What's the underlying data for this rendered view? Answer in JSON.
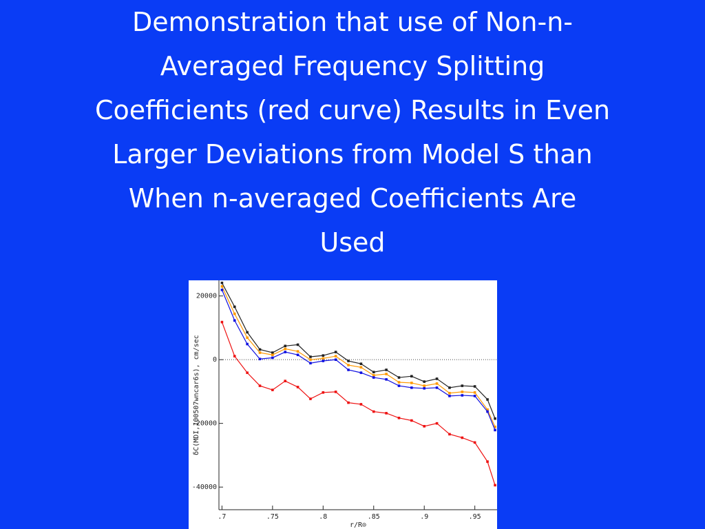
{
  "chart_data": {
    "type": "line",
    "title": [
      "Demonstration that use of Non-n-",
      "Averaged Frequency Splitting",
      "Coefficients (red curve) Results in Even",
      "Larger Deviations from Model S than",
      "When n-averaged Coefficients Are",
      "Used"
    ],
    "x_label": "r/R⊙",
    "y_label": "δC(MDI,100507wncar6s), cm/sec",
    "x": [
      0.7,
      0.7125,
      0.725,
      0.7375,
      0.75,
      0.7625,
      0.775,
      0.7875,
      0.8,
      0.8125,
      0.825,
      0.8375,
      0.85,
      0.8625,
      0.875,
      0.8875,
      0.9,
      0.9125,
      0.925,
      0.9375,
      0.95,
      0.9625,
      0.97
    ],
    "series": [
      {
        "color": "#222222",
        "values": [
          24100,
          16600,
          8600,
          3200,
          2200,
          4300,
          4700,
          900,
          1300,
          2400,
          -400,
          -1300,
          -3900,
          -3200,
          -5600,
          -5200,
          -6900,
          -6000,
          -8800,
          -8200,
          -8400,
          -12500,
          -18500
        ]
      },
      {
        "color": "#ff9900",
        "values": [
          23000,
          14400,
          6900,
          2200,
          1500,
          3400,
          2600,
          0,
          400,
          1100,
          -1700,
          -2400,
          -4900,
          -4500,
          -7100,
          -7300,
          -8200,
          -7500,
          -10500,
          -10100,
          -10300,
          -15700,
          -21100
        ]
      },
      {
        "color": "#1010e0",
        "values": [
          21900,
          12300,
          4900,
          200,
          600,
          2400,
          1500,
          -1100,
          -400,
          0,
          -3200,
          -4100,
          -5600,
          -6200,
          -8200,
          -8800,
          -9000,
          -8800,
          -11400,
          -11200,
          -11400,
          -16300,
          -22100
        ]
      },
      {
        "color": "#ee1111",
        "values": [
          11800,
          1100,
          -4100,
          -8200,
          -9500,
          -6700,
          -8600,
          -12300,
          -10300,
          -10100,
          -13500,
          -14000,
          -16300,
          -16800,
          -18300,
          -19100,
          -20900,
          -20000,
          -23400,
          -24500,
          -26000,
          -32000,
          -39400
        ]
      }
    ],
    "reference_line": 0,
    "xlim": [
      0.697,
      0.972
    ],
    "xticks": [
      {
        "value": 0.7,
        "label": ".7"
      },
      {
        "value": 0.75,
        "label": ".75"
      },
      {
        "value": 0.8,
        "label": ".8"
      },
      {
        "value": 0.85,
        "label": ".85"
      },
      {
        "value": 0.9,
        "label": ".9"
      },
      {
        "value": 0.95,
        "label": ".95"
      }
    ],
    "ylim": [
      -47100,
      24900
    ],
    "yticks": [
      20000,
      0,
      -20000,
      -40000
    ]
  }
}
